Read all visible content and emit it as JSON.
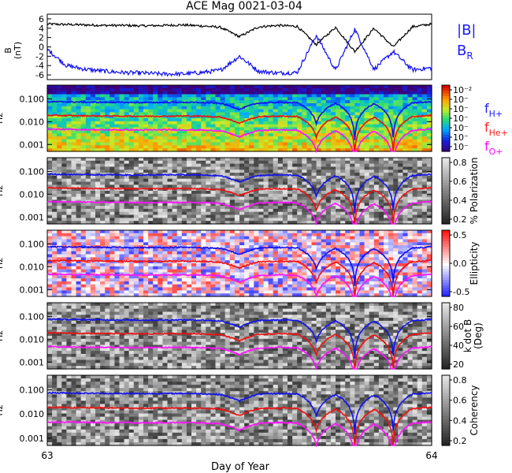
{
  "title": "ACE Mag 0021-03-04",
  "xaxis": {
    "label": "Day of Year",
    "tick_labels": [
      "63",
      "64"
    ],
    "range": [
      63,
      64
    ]
  },
  "legend": {
    "B": {
      "label": "|B|",
      "color": "#1a1aff"
    },
    "BR": {
      "base": "B",
      "sub": "R",
      "color": "#1a1aff"
    },
    "fH": {
      "base": "f",
      "sub": "H+",
      "color": "#2020ff"
    },
    "fHe": {
      "base": "f",
      "sub": "He+",
      "color": "#ff2020"
    },
    "fO": {
      "base": "f",
      "sub": "O+",
      "color": "#ff00ff"
    }
  },
  "colors": {
    "black_line": "#000000",
    "blue": "#1010ee",
    "red": "#ee1010",
    "magenta": "#ff10ff"
  },
  "chart_data": [
    {
      "type": "line",
      "panel": "B",
      "ylabel_top": "B",
      "ylabel_bottom": "(nT)",
      "ylim": [
        -7,
        7
      ],
      "yticks": [
        "6",
        "4",
        "2",
        "0",
        "-2",
        "-4",
        "-6"
      ],
      "series": [
        {
          "name": "|B|",
          "color": "#000000",
          "x": [
            63.0,
            63.05,
            63.1,
            63.15,
            63.2,
            63.25,
            63.3,
            63.35,
            63.4,
            63.45,
            63.5,
            63.55,
            63.6,
            63.65,
            63.7,
            63.75,
            63.8,
            63.85,
            63.9,
            63.95,
            64.0
          ],
          "values": [
            4.9,
            4.8,
            4.7,
            4.6,
            4.6,
            4.5,
            4.6,
            4.7,
            4.5,
            4.2,
            2.2,
            4.3,
            4.6,
            4.4,
            0.5,
            4.2,
            -1.0,
            4.0,
            0.0,
            4.3,
            4.9
          ]
        },
        {
          "name": "B_R",
          "color": "#1010ee",
          "x": [
            63.0,
            63.05,
            63.1,
            63.15,
            63.2,
            63.25,
            63.3,
            63.35,
            63.4,
            63.45,
            63.5,
            63.55,
            63.6,
            63.65,
            63.7,
            63.75,
            63.8,
            63.85,
            63.9,
            63.95,
            64.0
          ],
          "values": [
            -0.5,
            -4.0,
            -4.8,
            -5.2,
            -5.5,
            -5.6,
            -5.8,
            -5.8,
            -5.5,
            -5.0,
            -2.0,
            -5.2,
            -5.6,
            -5.5,
            2.5,
            -5.0,
            3.8,
            -4.8,
            -1.0,
            -4.9,
            -4.5
          ]
        }
      ]
    },
    {
      "type": "heatmap",
      "panel": "power",
      "ylabel": "Hz",
      "ylim_log": [
        0.0005,
        0.4
      ],
      "yticks": [
        "0.100",
        "0.010",
        "0.001"
      ],
      "colorbar": {
        "scale": "rainbow",
        "tick_labels": [
          "10⁻²",
          "10⁻",
          "10⁻",
          "10⁻",
          "10⁻",
          "10⁻",
          "10⁻"
        ]
      }
    },
    {
      "type": "heatmap",
      "panel": "polarization",
      "ylabel": "Hz",
      "ylim_log": [
        0.0005,
        0.4
      ],
      "yticks": [
        "0.100",
        "0.010",
        "0.001"
      ],
      "colorbar": {
        "scale": "gray",
        "label": "% Polarization",
        "tick_labels": [
          "0.8",
          "0.6",
          "0.4",
          "0.2"
        ],
        "range": [
          0,
          1
        ]
      }
    },
    {
      "type": "heatmap",
      "panel": "ellipticity",
      "ylabel": "Hz",
      "ylim_log": [
        0.0005,
        0.4
      ],
      "yticks": [
        "0.100",
        "0.010",
        "0.001"
      ],
      "colorbar": {
        "scale": "bluewhitered",
        "label": "Ellipticity",
        "tick_labels": [
          "0.5",
          "0.0",
          "-0.5"
        ],
        "range": [
          -1,
          1
        ]
      }
    },
    {
      "type": "heatmap",
      "panel": "kdotb",
      "ylabel": "Hz",
      "ylim_log": [
        0.0005,
        0.4
      ],
      "yticks": [
        "0.100",
        "0.010",
        "0.001"
      ],
      "colorbar": {
        "scale": "gray",
        "label": "k dot B",
        "label2": "(Deg)",
        "tick_labels": [
          "80",
          "60",
          "40",
          "20"
        ],
        "range": [
          0,
          90
        ]
      }
    },
    {
      "type": "heatmap",
      "panel": "coherency",
      "ylabel": "Hz",
      "ylim_log": [
        0.0005,
        0.4
      ],
      "yticks": [
        "0.100",
        "0.010",
        "0.001"
      ],
      "colorbar": {
        "scale": "gray",
        "label": "Coherency",
        "tick_labels": [
          "0.8",
          "0.6",
          "0.4",
          "0.2"
        ],
        "range": [
          0,
          1
        ]
      }
    }
  ],
  "gyro_lines": {
    "x": [
      63.0,
      63.05,
      63.1,
      63.15,
      63.2,
      63.25,
      63.3,
      63.35,
      63.4,
      63.45,
      63.5,
      63.55,
      63.6,
      63.65,
      63.7,
      63.75,
      63.8,
      63.85,
      63.9,
      63.95,
      64.0
    ],
    "fH": [
      0.075,
      0.074,
      0.072,
      0.071,
      0.07,
      0.069,
      0.07,
      0.071,
      0.069,
      0.064,
      0.034,
      0.066,
      0.07,
      0.068,
      0.008,
      0.064,
      0.0015,
      0.061,
      0.002,
      0.066,
      0.075
    ],
    "fHe": [
      0.019,
      0.0185,
      0.018,
      0.0178,
      0.0175,
      0.0173,
      0.0175,
      0.0178,
      0.0173,
      0.016,
      0.0085,
      0.0165,
      0.0175,
      0.017,
      0.002,
      0.016,
      0.0004,
      0.0153,
      0.0005,
      0.0165,
      0.019
    ],
    "fO": [
      0.0047,
      0.0046,
      0.0045,
      0.0044,
      0.0044,
      0.0043,
      0.0044,
      0.0044,
      0.0043,
      0.004,
      0.0021,
      0.0041,
      0.0044,
      0.0042,
      0.0005,
      0.004,
      0.0001,
      0.0038,
      0.00012,
      0.0041,
      0.0047
    ]
  }
}
